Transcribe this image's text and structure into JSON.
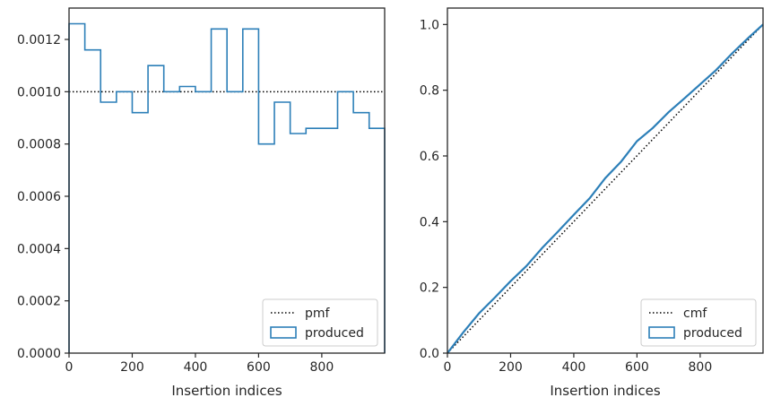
{
  "chart_data": [
    {
      "type": "line",
      "subtype": "step-histogram",
      "xlabel": "Insertion indices",
      "ylabel": "",
      "xlim": [
        0,
        999
      ],
      "ylim": [
        0,
        0.00132
      ],
      "x_ticks": [
        "0",
        "200",
        "400",
        "600",
        "800"
      ],
      "x_tick_values": [
        0,
        200,
        400,
        600,
        800
      ],
      "y_ticks": [
        "0.0000",
        "0.0002",
        "0.0004",
        "0.0006",
        "0.0008",
        "0.0010",
        "0.0012"
      ],
      "y_tick_values": [
        0,
        0.0002,
        0.0004,
        0.0006,
        0.0008,
        0.001,
        0.0012
      ],
      "grid": false,
      "legend": {
        "position": "bottom-right",
        "entries": [
          "pmf",
          "produced"
        ]
      },
      "series": [
        {
          "name": "pmf",
          "style": "dotted",
          "color": "#000000",
          "x": [
            0,
            999
          ],
          "y": [
            0.001,
            0.001
          ]
        },
        {
          "name": "produced",
          "style": "step",
          "color": "#2c7fb8",
          "bin_edges": [
            0,
            50,
            100,
            150,
            200,
            250,
            300,
            350,
            400,
            450,
            500,
            550,
            600,
            650,
            700,
            750,
            800,
            850,
            900,
            950,
            999
          ],
          "values": [
            0.00126,
            0.00116,
            0.00096,
            0.001,
            0.00092,
            0.0011,
            0.001,
            0.00102,
            0.001,
            0.00124,
            0.001,
            0.00124,
            0.0008,
            0.00096,
            0.00084,
            0.00086,
            0.00086,
            0.001,
            0.00092,
            0.00086
          ]
        }
      ]
    },
    {
      "type": "line",
      "xlabel": "Insertion indices",
      "ylabel": "",
      "xlim": [
        0,
        999
      ],
      "ylim": [
        0,
        1.05
      ],
      "x_ticks": [
        "0",
        "200",
        "400",
        "600",
        "800"
      ],
      "x_tick_values": [
        0,
        200,
        400,
        600,
        800
      ],
      "y_ticks": [
        "0.0",
        "0.2",
        "0.4",
        "0.6",
        "0.8",
        "1.0"
      ],
      "y_tick_values": [
        0,
        0.2,
        0.4,
        0.6,
        0.8,
        1.0
      ],
      "grid": false,
      "legend": {
        "position": "bottom-right",
        "entries": [
          "cmf",
          "produced"
        ]
      },
      "series": [
        {
          "name": "cmf",
          "style": "dotted",
          "color": "#000000",
          "x": [
            0,
            999
          ],
          "y": [
            0,
            1.0
          ]
        },
        {
          "name": "produced",
          "style": "solid",
          "color": "#2c7fb8",
          "x": [
            0,
            50,
            100,
            150,
            200,
            250,
            300,
            350,
            400,
            450,
            500,
            550,
            600,
            650,
            700,
            750,
            800,
            850,
            900,
            950,
            999
          ],
          "y": [
            0,
            0.063,
            0.121,
            0.169,
            0.219,
            0.265,
            0.32,
            0.37,
            0.421,
            0.471,
            0.533,
            0.583,
            0.645,
            0.685,
            0.733,
            0.775,
            0.818,
            0.861,
            0.911,
            0.957,
            1.0
          ]
        }
      ]
    }
  ]
}
